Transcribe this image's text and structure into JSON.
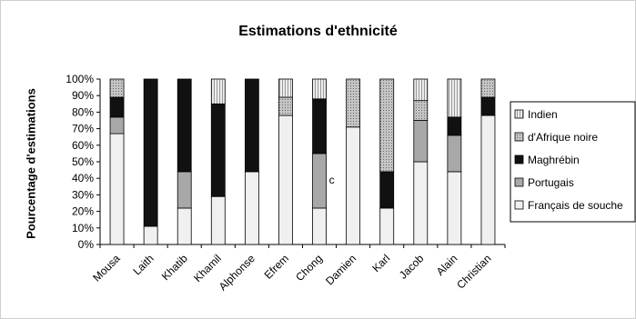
{
  "chart_data": {
    "type": "bar",
    "stacked": true,
    "normalized": true,
    "title": "Estimations d'ethnicité",
    "xlabel": "",
    "ylabel": "Pourcentage d'estimations",
    "ylim": [
      0,
      100
    ],
    "yticks": [
      "0%",
      "10%",
      "20%",
      "30%",
      "40%",
      "50%",
      "60%",
      "70%",
      "80%",
      "90%",
      "100%"
    ],
    "categories": [
      "Mousa",
      "Laith",
      "Khatib",
      "Khamil",
      "Alphonse",
      "Efrem",
      "Chong",
      "Damien",
      "Karl",
      "Jacob",
      "Alain",
      "Christian"
    ],
    "series": [
      {
        "name": "Français de souche",
        "fill": "#f0f0f0",
        "pattern": "none",
        "values": [
          67,
          11,
          22,
          29,
          44,
          78,
          22,
          71,
          22,
          50,
          44,
          78
        ]
      },
      {
        "name": "Portugais",
        "fill": "#a8a8a8",
        "pattern": "none",
        "values": [
          10,
          0,
          22,
          0,
          0,
          0,
          33,
          0,
          0,
          25,
          22,
          0
        ]
      },
      {
        "name": "Maghrébin",
        "fill": "#111111",
        "pattern": "none",
        "values": [
          12,
          89,
          56,
          56,
          56,
          0,
          33,
          0,
          22,
          0,
          11,
          11
        ]
      },
      {
        "name": "d'Afrique noire",
        "fill": "#b0b0b0",
        "pattern": "dots",
        "values": [
          11,
          0,
          0,
          0,
          0,
          11,
          0,
          29,
          56,
          12,
          0,
          11
        ]
      },
      {
        "name": "Indien",
        "fill": "#cfcfcf",
        "pattern": "vlines",
        "values": [
          0,
          0,
          0,
          15,
          0,
          11,
          12,
          0,
          0,
          13,
          23,
          0
        ]
      }
    ],
    "legend_position": "right",
    "legend_order": [
      "Indien",
      "d'Afrique noire",
      "Maghrébin",
      "Portugais",
      "Français de souche"
    ],
    "annotation": "c",
    "grid": false
  }
}
